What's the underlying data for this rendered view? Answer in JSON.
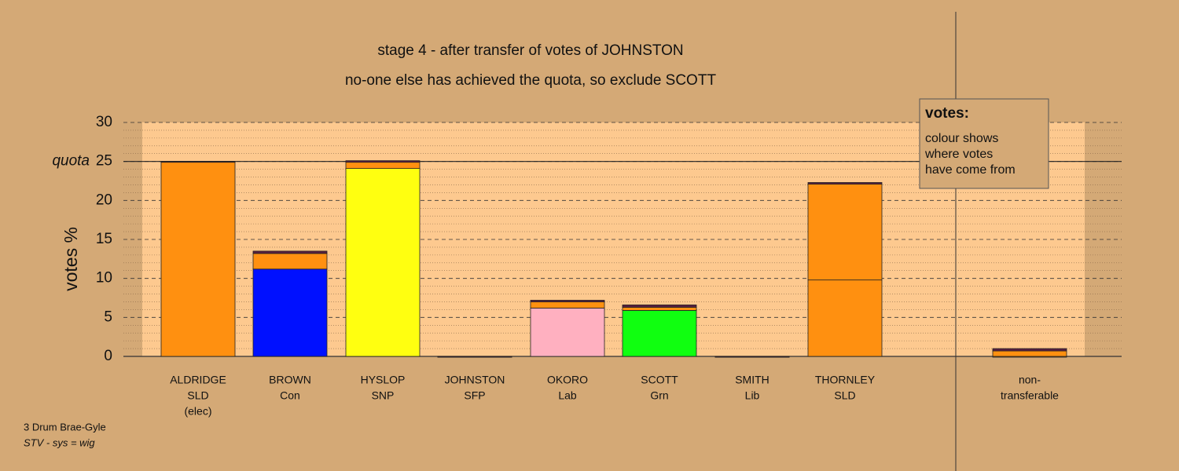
{
  "chart_data": {
    "type": "stacked-bar",
    "title": "stage 4 - after transfer of votes of JOHNSTON",
    "subtitle": "no-one else has achieved the quota, so exclude SCOTT",
    "ylabel": "votes %",
    "categories": [
      [
        "ALDRIDGE",
        "SLD",
        "(elec)"
      ],
      [
        "BROWN",
        "Con"
      ],
      [
        "HYSLOP",
        "SNP"
      ],
      [
        "JOHNSTON",
        "SFP"
      ],
      [
        "OKORO",
        "Lab"
      ],
      [
        "SCOTT",
        "Grn"
      ],
      [
        "SMITH",
        "Lib"
      ],
      [
        "THORNLEY",
        "SLD"
      ],
      [
        "non-",
        "transferable"
      ]
    ],
    "series": [
      {
        "colors": [
          "#ff9010",
          "#0010ff",
          "#ffff10",
          "#888888",
          "#ffb0c0",
          "#10ff10",
          "#888888",
          "#ff9010",
          "#ff9010"
        ],
        "values": [
          25,
          11.2,
          24.1,
          0,
          6.2,
          5.9,
          0,
          9.8,
          0
        ]
      },
      {
        "color": "#ff9010",
        "values": [
          0,
          2.0,
          0.8,
          0,
          0.8,
          0.4,
          0,
          12.3,
          0.7
        ]
      },
      {
        "color": "#5a1f40",
        "values": [
          0,
          0.3,
          0.2,
          0,
          0.2,
          0.3,
          0,
          0.2,
          0.3
        ]
      }
    ],
    "ylim": [
      0,
      30
    ],
    "yticks": [
      0,
      5,
      10,
      15,
      20,
      25,
      30
    ],
    "grid": true,
    "quota": {
      "value": 25,
      "label": "quota"
    },
    "legend": {
      "title": "votes:",
      "lines": [
        "colour shows",
        "where votes",
        "have come from"
      ]
    },
    "footer": [
      "3 Drum Brae-Gyle",
      "STV - sys = wig"
    ]
  }
}
